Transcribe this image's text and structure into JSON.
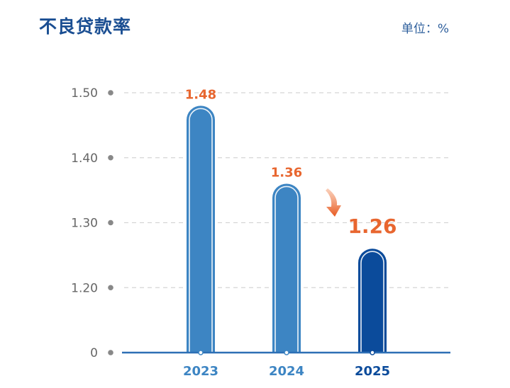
{
  "header": {
    "title": "不良贷款率",
    "unit": "单位：%"
  },
  "colors": {
    "bar": "#3d85c3",
    "bar_highlight": "#0b4b9b",
    "value_label": "#e8662f",
    "axis": "#2d6fb5",
    "tick_text": "#666666",
    "grid": "#d5d5d5"
  },
  "chart_data": {
    "type": "bar",
    "title": "不良贷款率",
    "unit": "单位：%",
    "categories": [
      "2023",
      "2024",
      "2025"
    ],
    "values": [
      1.48,
      1.36,
      1.26
    ],
    "value_labels": [
      "1.48",
      "1.36",
      "1.26"
    ],
    "y_ticks": [
      "0",
      "1.20",
      "1.30",
      "1.40",
      "1.50"
    ],
    "y_tick_values": [
      1.1,
      1.2,
      1.3,
      1.4,
      1.5
    ],
    "axis_break": true,
    "ylim": [
      1.1,
      1.5
    ],
    "grid": true,
    "highlight_index": 2,
    "annotation": "down-arrow-icon"
  }
}
